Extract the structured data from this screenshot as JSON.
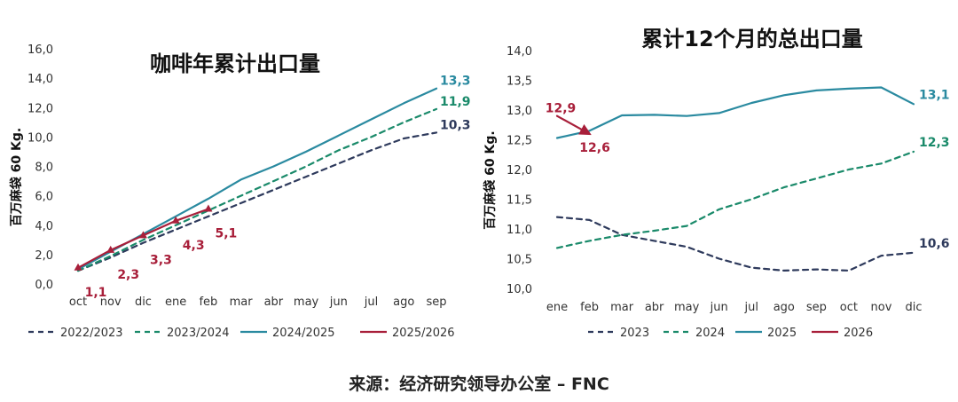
{
  "chart_data": [
    {
      "type": "line",
      "title": "咖啡年累计出口量",
      "ylabel": "百万麻袋 60 Kg.",
      "xlabel": "",
      "categories": [
        "oct",
        "nov",
        "dic",
        "ene",
        "feb",
        "mar",
        "abr",
        "may",
        "jun",
        "jul",
        "ago",
        "sep"
      ],
      "ylim": [
        0,
        16
      ],
      "yticks": [
        "0,0",
        "2,0",
        "4,0",
        "6,0",
        "8,0",
        "10,0",
        "12,0",
        "14,0",
        "16,0"
      ],
      "grid": false,
      "legend_position": "bottom",
      "series": [
        {
          "name": "2022/2023",
          "color": "#2e3a5c",
          "dash": "dashed",
          "values": [
            0.9,
            1.8,
            2.8,
            3.7,
            4.6,
            5.5,
            6.4,
            7.3,
            8.2,
            9.1,
            9.9,
            10.3
          ]
        },
        {
          "name": "2023/2024",
          "color": "#1a8a6a",
          "dash": "dashed",
          "values": [
            0.9,
            1.9,
            3.0,
            4.0,
            5.0,
            6.0,
            7.0,
            8.0,
            9.1,
            10.0,
            11.0,
            11.9
          ]
        },
        {
          "name": "2024/2025",
          "color": "#2a8aa0",
          "dash": "solid",
          "values": [
            1.0,
            2.2,
            3.4,
            4.6,
            5.8,
            7.1,
            8.0,
            9.0,
            10.1,
            11.2,
            12.3,
            13.3
          ]
        },
        {
          "name": "2025/2026",
          "color": "#a81f3a",
          "dash": "solid",
          "markers": true,
          "values": [
            1.1,
            2.3,
            3.3,
            4.3,
            5.1,
            null,
            null,
            null,
            null,
            null,
            null,
            null
          ]
        }
      ],
      "end_labels": [
        {
          "series": 2,
          "text": "13,3"
        },
        {
          "series": 1,
          "text": "11,9"
        },
        {
          "series": 0,
          "text": "10,3"
        }
      ],
      "point_labels": [
        {
          "series": 3,
          "index": 0,
          "text": "1,1"
        },
        {
          "series": 3,
          "index": 1,
          "text": "2,3"
        },
        {
          "series": 3,
          "index": 2,
          "text": "3,3"
        },
        {
          "series": 3,
          "index": 3,
          "text": "4,3"
        },
        {
          "series": 3,
          "index": 4,
          "text": "5,1"
        }
      ]
    },
    {
      "type": "line",
      "title": "累计12个月的总出口量",
      "ylabel": "百万麻袋 60 Kg.",
      "xlabel": "",
      "categories": [
        "ene",
        "feb",
        "mar",
        "abr",
        "may",
        "jun",
        "jul",
        "ago",
        "sep",
        "oct",
        "nov",
        "dic"
      ],
      "ylim": [
        10,
        14
      ],
      "yticks": [
        "10,0",
        "10,5",
        "11,0",
        "11,5",
        "12,0",
        "12,5",
        "13,0",
        "13,5",
        "14,0"
      ],
      "grid": false,
      "legend_position": "bottom",
      "series": [
        {
          "name": "2023",
          "color": "#2e3a5c",
          "dash": "dashed",
          "values": [
            11.2,
            11.15,
            10.9,
            10.8,
            10.7,
            10.5,
            10.35,
            10.3,
            10.32,
            10.3,
            10.55,
            10.6
          ]
        },
        {
          "name": "2024",
          "color": "#1a8a6a",
          "dash": "dashed",
          "values": [
            10.68,
            10.8,
            10.9,
            10.97,
            11.05,
            11.33,
            11.5,
            11.7,
            11.85,
            12.0,
            12.1,
            12.3
          ]
        },
        {
          "name": "2025",
          "color": "#2a8aa0",
          "dash": "solid",
          "values": [
            12.53,
            12.65,
            12.91,
            12.92,
            12.9,
            12.95,
            13.12,
            13.25,
            13.33,
            13.36,
            13.38,
            13.1
          ]
        },
        {
          "name": "2026",
          "color": "#a81f3a",
          "dash": "solid",
          "arrow": true,
          "values": [
            12.9,
            12.6,
            null,
            null,
            null,
            null,
            null,
            null,
            null,
            null,
            null,
            null
          ]
        }
      ],
      "end_labels": [
        {
          "series": 2,
          "text": "13,1"
        },
        {
          "series": 1,
          "text": "12,3"
        },
        {
          "series": 0,
          "text": "10,6"
        }
      ],
      "point_labels": [
        {
          "series": 3,
          "index": 0,
          "text": "12,9"
        },
        {
          "series": 3,
          "index": 1,
          "text": "12,6"
        }
      ]
    }
  ],
  "source": "来源：经济研究领导办公室 – FNC"
}
